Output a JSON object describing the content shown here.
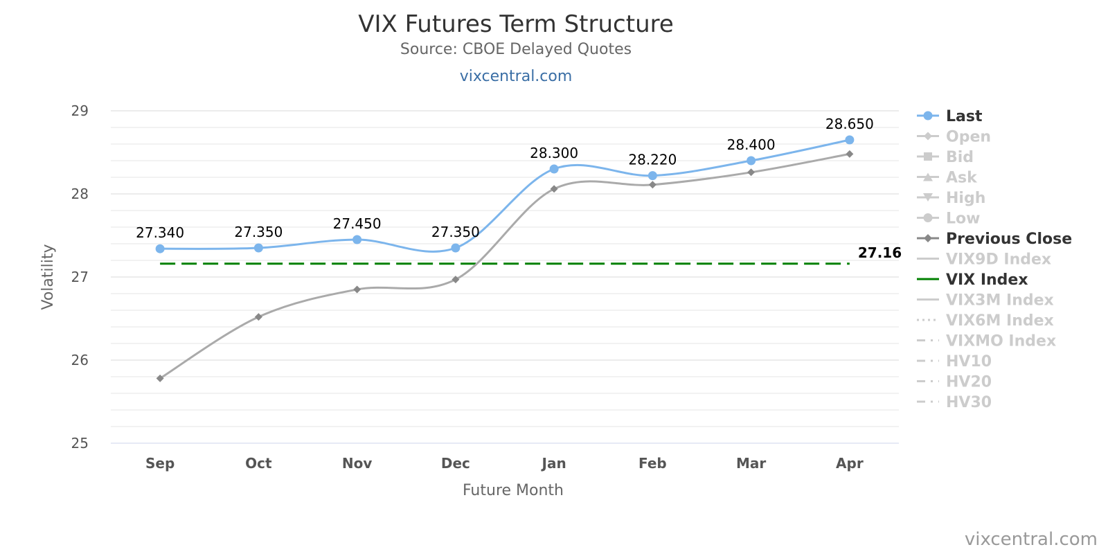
{
  "chart_data": {
    "type": "line",
    "title": "VIX Futures Term Structure",
    "subtitle": "Source: CBOE Delayed Quotes",
    "link_text": "vixcentral.com",
    "credit": "vixcentral.com",
    "xlabel": "Future Month",
    "ylabel": "Volatility",
    "categories": [
      "Sep",
      "Oct",
      "Nov",
      "Dec",
      "Jan",
      "Feb",
      "Mar",
      "Apr"
    ],
    "ylim": [
      25,
      29
    ],
    "yticks": [
      25,
      26,
      27,
      28,
      29
    ],
    "y_minor_step": 0.2,
    "grid": true,
    "legend_position": "right",
    "series": [
      {
        "name": "Last",
        "values": [
          27.34,
          27.35,
          27.45,
          27.35,
          28.3,
          28.22,
          28.4,
          28.65
        ],
        "labels": [
          "27.340",
          "27.350",
          "27.450",
          "27.350",
          "28.300",
          "28.220",
          "28.400",
          "28.650"
        ],
        "color": "#7cb5ec",
        "marker": "circle"
      },
      {
        "name": "Previous Close",
        "values": [
          25.78,
          26.52,
          26.85,
          26.97,
          28.06,
          28.11,
          28.26,
          28.48
        ],
        "color": "#aaaaaa",
        "marker": "diamond"
      }
    ],
    "reference_lines": [
      {
        "name": "VIX Index",
        "value": 27.16,
        "label": "27.16",
        "color": "#008000",
        "dash": true
      }
    ],
    "legend": [
      {
        "name": "Last",
        "active": true,
        "symbol": "circle",
        "color": "#7cb5ec"
      },
      {
        "name": "Open",
        "active": false,
        "symbol": "diamond"
      },
      {
        "name": "Bid",
        "active": false,
        "symbol": "square"
      },
      {
        "name": "Ask",
        "active": false,
        "symbol": "triangle"
      },
      {
        "name": "High",
        "active": false,
        "symbol": "triangle-down"
      },
      {
        "name": "Low",
        "active": false,
        "symbol": "circle"
      },
      {
        "name": "Previous Close",
        "active": true,
        "symbol": "diamond",
        "color": "#888888"
      },
      {
        "name": "VIX9D Index",
        "active": false,
        "symbol": "line"
      },
      {
        "name": "VIX Index",
        "active": true,
        "symbol": "line",
        "color": "#008000"
      },
      {
        "name": "VIX3M Index",
        "active": false,
        "symbol": "line"
      },
      {
        "name": "VIX6M Index",
        "active": false,
        "symbol": "dot"
      },
      {
        "name": "VIXMO Index",
        "active": false,
        "symbol": "dashdot"
      },
      {
        "name": "HV10",
        "active": false,
        "symbol": "dashdot"
      },
      {
        "name": "HV20",
        "active": false,
        "symbol": "dashdot"
      },
      {
        "name": "HV30",
        "active": false,
        "symbol": "dashdot"
      }
    ]
  }
}
